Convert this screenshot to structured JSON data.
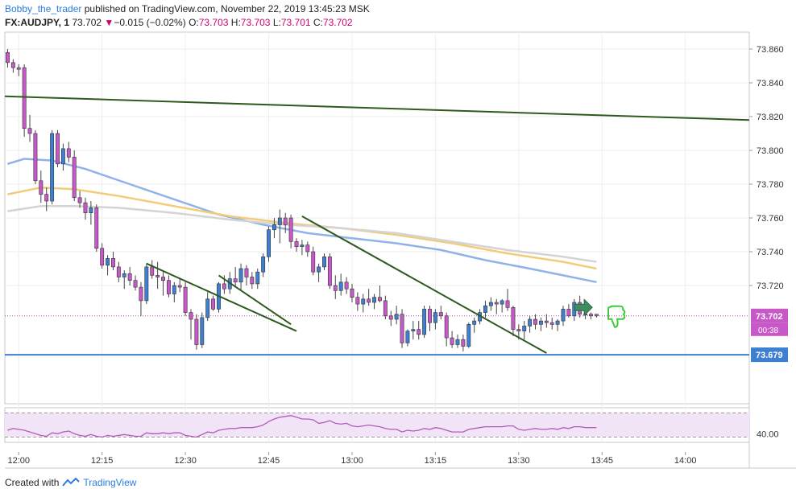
{
  "header": {
    "author": "Bobby_the_trader",
    "published_text": "published on TradingView.com, November 22, 2019 13:45:23 MSK",
    "symbol": "FX:AUDJPY, 1",
    "last": "73.702",
    "change_arrow": "▼",
    "change": "−0.015 (−0.02%)",
    "o_label": "O:",
    "o": "73.703",
    "h_label": "H:",
    "h": "73.703",
    "l_label": "L:",
    "l": "73.701",
    "c_label": "C:",
    "c": "73.702"
  },
  "footer": {
    "created_with": "Created with",
    "brand": "TradingView"
  },
  "colors": {
    "up": "#3d7fd1",
    "down": "#c858c8",
    "trend": "#2d5a1e",
    "support": "#3d7fd1",
    "ma_blue": "#8fb3e8",
    "ma_orange": "#f2cc7a",
    "ma_gray": "#d4d4d4",
    "rsi": "#b05cb8"
  },
  "chart_data": {
    "type": "candlestick",
    "symbol": "FX:AUDJPY",
    "interval": "1",
    "ylim": [
      73.65,
      73.87
    ],
    "y_ticks": [
      "73.860",
      "73.840",
      "73.820",
      "73.800",
      "73.780",
      "73.760",
      "73.740",
      "73.720"
    ],
    "x_ticks": [
      {
        "label": "12:00",
        "t": 2
      },
      {
        "label": "12:15",
        "t": 17
      },
      {
        "label": "12:30",
        "t": 32
      },
      {
        "label": "12:45",
        "t": 47
      },
      {
        "label": "13:00",
        "t": 62
      },
      {
        "label": "13:15",
        "t": 77
      },
      {
        "label": "13:30",
        "t": 92
      },
      {
        "label": "13:45",
        "t": 107
      },
      {
        "label": "14:00",
        "t": 122
      }
    ],
    "t_range": [
      -0.5,
      133.5
    ],
    "candles": [
      [
        73.858,
        73.86,
        73.849,
        73.852
      ],
      [
        73.852,
        73.854,
        73.846,
        73.849
      ],
      [
        73.849,
        73.851,
        73.844,
        73.848
      ],
      [
        73.849,
        73.851,
        73.808,
        73.813
      ],
      [
        73.813,
        73.821,
        73.805,
        73.81
      ],
      [
        73.81,
        73.812,
        73.78,
        73.782
      ],
      [
        73.782,
        73.788,
        73.769,
        73.774
      ],
      [
        73.774,
        73.778,
        73.764,
        73.77
      ],
      [
        73.77,
        73.812,
        73.768,
        73.81
      ],
      [
        73.81,
        73.812,
        73.79,
        73.792
      ],
      [
        73.792,
        73.804,
        73.788,
        73.801
      ],
      [
        73.801,
        73.805,
        73.793,
        73.796
      ],
      [
        73.796,
        73.8,
        73.77,
        73.772
      ],
      [
        73.772,
        73.776,
        73.766,
        73.769
      ],
      [
        73.769,
        73.772,
        73.759,
        73.763
      ],
      [
        73.763,
        73.77,
        73.756,
        73.766
      ],
      [
        73.766,
        73.768,
        73.74,
        73.742
      ],
      [
        73.742,
        73.745,
        73.73,
        73.732
      ],
      [
        73.732,
        73.738,
        73.726,
        73.736
      ],
      [
        73.736,
        73.74,
        73.729,
        73.731
      ],
      [
        73.731,
        73.734,
        73.722,
        73.725
      ],
      [
        73.725,
        73.729,
        73.718,
        73.727
      ],
      [
        73.727,
        73.731,
        73.72,
        73.723
      ],
      [
        73.723,
        73.726,
        73.717,
        73.719
      ],
      [
        73.719,
        73.722,
        73.702,
        73.711
      ],
      [
        73.711,
        73.733,
        73.709,
        73.731
      ],
      [
        73.731,
        73.735,
        73.724,
        73.726
      ],
      [
        73.726,
        73.734,
        73.718,
        73.725
      ],
      [
        73.725,
        73.728,
        73.714,
        73.723
      ],
      [
        73.723,
        73.726,
        73.713,
        73.715
      ],
      [
        73.715,
        73.722,
        73.71,
        73.72
      ],
      [
        73.72,
        73.724,
        73.716,
        73.719
      ],
      [
        73.719,
        73.722,
        73.702,
        73.704
      ],
      [
        73.704,
        73.706,
        73.688,
        73.7
      ],
      [
        73.7,
        73.703,
        73.682,
        73.685
      ],
      [
        73.685,
        73.704,
        73.683,
        73.701
      ],
      [
        73.701,
        73.716,
        73.699,
        73.712
      ],
      [
        73.712,
        73.714,
        73.705,
        73.706
      ],
      [
        73.706,
        73.722,
        73.704,
        73.721
      ],
      [
        73.721,
        73.726,
        73.715,
        73.718
      ],
      [
        73.718,
        73.728,
        73.715,
        73.724
      ],
      [
        73.724,
        73.731,
        73.719,
        73.722
      ],
      [
        73.722,
        73.733,
        73.717,
        73.73
      ],
      [
        73.73,
        73.732,
        73.72,
        73.725
      ],
      [
        73.725,
        73.728,
        73.718,
        73.721
      ],
      [
        73.721,
        73.73,
        73.718,
        73.728
      ],
      [
        73.728,
        73.739,
        73.725,
        73.737
      ],
      [
        73.737,
        73.755,
        73.734,
        73.753
      ],
      [
        73.753,
        73.76,
        73.748,
        73.756
      ],
      [
        73.756,
        73.765,
        73.745,
        73.76
      ],
      [
        73.76,
        73.763,
        73.751,
        73.756
      ],
      [
        73.76,
        73.762,
        73.742,
        73.746
      ],
      [
        73.746,
        73.748,
        73.74,
        73.743
      ],
      [
        73.743,
        73.747,
        73.738,
        73.744
      ],
      [
        73.744,
        73.746,
        73.737,
        73.74
      ],
      [
        73.74,
        73.743,
        73.726,
        73.728
      ],
      [
        73.728,
        73.733,
        73.722,
        73.731
      ],
      [
        73.731,
        73.739,
        73.729,
        73.737
      ],
      [
        73.737,
        73.739,
        73.718,
        73.72
      ],
      [
        73.72,
        73.726,
        73.712,
        73.717
      ],
      [
        73.717,
        73.727,
        73.714,
        73.722
      ],
      [
        73.722,
        73.725,
        73.715,
        73.718
      ],
      [
        73.718,
        73.721,
        73.71,
        73.713
      ],
      [
        73.713,
        73.716,
        73.705,
        73.709
      ],
      [
        73.709,
        73.715,
        73.704,
        73.712
      ],
      [
        73.712,
        73.718,
        73.708,
        73.71
      ],
      [
        73.71,
        73.715,
        73.706,
        73.713
      ],
      [
        73.713,
        73.72,
        73.71,
        73.711
      ],
      [
        73.711,
        73.714,
        73.7,
        73.702
      ],
      [
        73.702,
        73.705,
        73.696,
        73.7
      ],
      [
        73.7,
        73.708,
        73.697,
        73.703
      ],
      [
        73.703,
        73.706,
        73.683,
        73.686
      ],
      [
        73.686,
        73.694,
        73.684,
        73.693
      ],
      [
        73.693,
        73.699,
        73.688,
        73.694
      ],
      [
        73.694,
        73.699,
        73.688,
        73.691
      ],
      [
        73.691,
        73.708,
        73.689,
        73.706
      ],
      [
        73.706,
        73.708,
        73.693,
        73.698
      ],
      [
        73.698,
        73.706,
        73.694,
        73.704
      ],
      [
        73.704,
        73.708,
        73.7,
        73.702
      ],
      [
        73.702,
        73.704,
        73.684,
        73.689
      ],
      [
        73.689,
        73.693,
        73.683,
        73.685
      ],
      [
        73.685,
        73.691,
        73.683,
        73.688
      ],
      [
        73.688,
        73.691,
        73.681,
        73.684
      ],
      [
        73.684,
        73.698,
        73.683,
        73.697
      ],
      [
        73.697,
        73.701,
        73.692,
        73.699
      ],
      [
        73.699,
        73.706,
        73.697,
        73.704
      ],
      [
        73.704,
        73.711,
        73.701,
        73.708
      ],
      [
        73.708,
        73.713,
        73.705,
        73.71
      ],
      [
        73.71,
        73.712,
        73.703,
        73.709
      ],
      [
        73.709,
        73.712,
        73.704,
        73.711
      ],
      [
        73.711,
        73.718,
        73.705,
        73.707
      ],
      [
        73.707,
        73.708,
        73.69,
        73.694
      ],
      [
        73.694,
        73.697,
        73.688,
        73.693
      ],
      [
        73.693,
        73.699,
        73.688,
        73.696
      ],
      [
        73.696,
        73.702,
        73.692,
        73.7
      ],
      [
        73.7,
        73.703,
        73.694,
        73.697
      ],
      [
        73.697,
        73.701,
        73.693,
        73.699
      ],
      [
        73.699,
        73.703,
        73.695,
        73.698
      ],
      [
        73.698,
        73.701,
        73.694,
        73.697
      ],
      [
        73.697,
        73.7,
        73.693,
        73.699
      ],
      [
        73.699,
        73.708,
        73.696,
        73.706
      ],
      [
        73.706,
        73.709,
        73.701,
        73.702
      ],
      [
        73.702,
        73.712,
        73.699,
        73.71
      ],
      [
        73.71,
        73.714,
        73.701,
        73.703
      ],
      [
        73.703,
        73.705,
        73.7,
        73.703
      ],
      [
        73.703,
        73.704,
        73.7,
        73.702
      ],
      [
        73.703,
        73.703,
        73.701,
        73.702
      ]
    ],
    "moving_averages": [
      {
        "color": "#8fb3e8",
        "points": [
          [
            0,
            73.792
          ],
          [
            3,
            73.795
          ],
          [
            8,
            73.794
          ],
          [
            14,
            73.789
          ],
          [
            22,
            73.78
          ],
          [
            30,
            73.771
          ],
          [
            38,
            73.762
          ],
          [
            46,
            73.756
          ],
          [
            54,
            73.751
          ],
          [
            62,
            73.748
          ],
          [
            70,
            73.745
          ],
          [
            78,
            73.741
          ],
          [
            86,
            73.735
          ],
          [
            94,
            73.73
          ],
          [
            100,
            73.726
          ],
          [
            106,
            73.722
          ]
        ]
      },
      {
        "color": "#f2cc7a",
        "points": [
          [
            0,
            73.774
          ],
          [
            6,
            73.778
          ],
          [
            12,
            73.777
          ],
          [
            20,
            73.773
          ],
          [
            30,
            73.767
          ],
          [
            40,
            73.761
          ],
          [
            50,
            73.757
          ],
          [
            60,
            73.754
          ],
          [
            70,
            73.75
          ],
          [
            80,
            73.745
          ],
          [
            90,
            73.739
          ],
          [
            100,
            73.734
          ],
          [
            106,
            73.73
          ]
        ]
      },
      {
        "color": "#d4d4d4",
        "points": [
          [
            0,
            73.764
          ],
          [
            6,
            73.767
          ],
          [
            12,
            73.767
          ],
          [
            20,
            73.766
          ],
          [
            30,
            73.763
          ],
          [
            40,
            73.759
          ],
          [
            50,
            73.756
          ],
          [
            60,
            73.754
          ],
          [
            70,
            73.751
          ],
          [
            80,
            73.746
          ],
          [
            90,
            73.741
          ],
          [
            100,
            73.737
          ],
          [
            106,
            73.734
          ]
        ]
      }
    ],
    "trendlines": [
      {
        "points": [
          [
            -0.5,
            73.832
          ],
          [
            133.5,
            73.818
          ]
        ]
      },
      {
        "points": [
          [
            25,
            73.733
          ],
          [
            52,
            73.693
          ]
        ]
      },
      {
        "points": [
          [
            53,
            73.761
          ],
          [
            97,
            73.68
          ]
        ]
      },
      {
        "points": [
          [
            38,
            73.726
          ],
          [
            51,
            73.697
          ]
        ]
      }
    ],
    "support_line": 73.679,
    "last_price_label": "73.702",
    "countdown": "00:38",
    "support_label": "73.679",
    "rsi": {
      "ylim": [
        30,
        70
      ],
      "ticks": [
        "40.00"
      ],
      "bands": [
        36,
        64
      ],
      "values": [
        44,
        46,
        45,
        44,
        42,
        40,
        38,
        37,
        41,
        40,
        42,
        43,
        40,
        38,
        37,
        39,
        37,
        36,
        38,
        37,
        38,
        39,
        38,
        37,
        37,
        41,
        40,
        40,
        41,
        40,
        41,
        41,
        38,
        37,
        36,
        39,
        42,
        41,
        44,
        45,
        46,
        46,
        47,
        47,
        47,
        48,
        50,
        54,
        57,
        59,
        60,
        61,
        59,
        57,
        57,
        56,
        52,
        53,
        55,
        52,
        51,
        52,
        49,
        48,
        49,
        50,
        49,
        48,
        46,
        45,
        45,
        42,
        44,
        43,
        44,
        46,
        45,
        47,
        46,
        44,
        42,
        42,
        42,
        45,
        46,
        47,
        48,
        48,
        48,
        48,
        49,
        49,
        45,
        44,
        45,
        46,
        45,
        45,
        46,
        45,
        47,
        46,
        48,
        48,
        47,
        47,
        47
      ]
    },
    "annotations": [
      "up-arrow",
      "thumbs-down"
    ]
  }
}
